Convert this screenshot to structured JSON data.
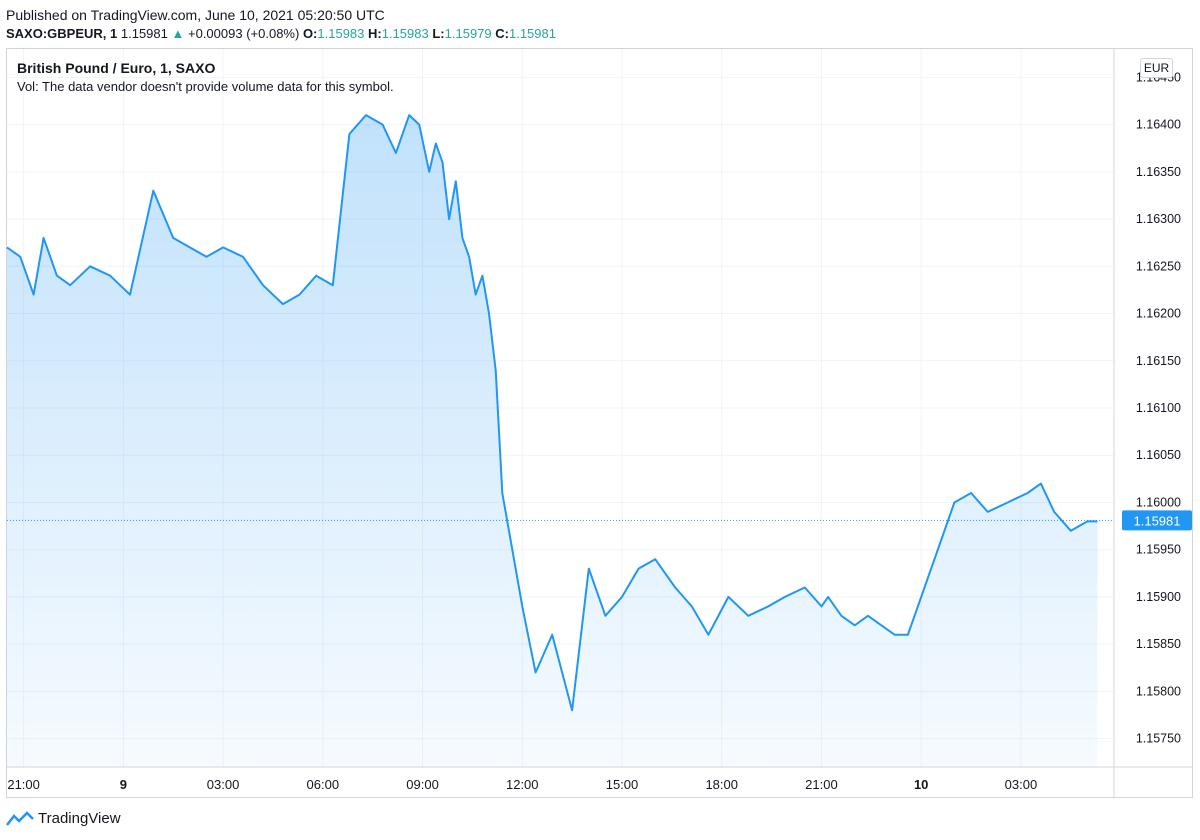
{
  "header": {
    "published": "Published on TradingView.com, June 10, 2021 05:20:50 UTC",
    "symbol": "SAXO:GBPEUR, 1",
    "last": "1.15981",
    "change_arrow": "▲",
    "change": "+0.00093 (+0.08%)",
    "o_label": "O:",
    "o_value": "1.15983",
    "h_label": "H:",
    "h_value": "1.15983",
    "l_label": "L:",
    "l_value": "1.15979",
    "c_label": "C:",
    "c_value": "1.15981"
  },
  "chart_title": "British Pound / Euro, 1, SAXO",
  "vol_note": "Vol: The data vendor doesn't provide volume data for this symbol.",
  "currency": "EUR",
  "footer": {
    "brand": "TradingView"
  },
  "colors": {
    "line": "#2196f3",
    "price_tag": "#2196f3",
    "axis_text": "#131722",
    "grid": "#f0f3fa"
  },
  "chart_data": {
    "type": "area",
    "x_unit": "UTC time (hours from 21:00, June 8)",
    "ylim": [
      1.1572,
      1.1648
    ],
    "yticks": [
      1.1575,
      1.158,
      1.1585,
      1.159,
      1.1595,
      1.16,
      1.1605,
      1.161,
      1.1615,
      1.162,
      1.1625,
      1.163,
      1.1635,
      1.164,
      1.1645
    ],
    "ytick_labels": [
      "1.15750",
      "1.15800",
      "1.15850",
      "1.15900",
      "1.15950",
      "1.16000",
      "1.16050",
      "1.16100",
      "1.16150",
      "1.16200",
      "1.16250",
      "1.16300",
      "1.16350",
      "1.16400",
      "1.16450"
    ],
    "xlim": [
      -0.5,
      32.8
    ],
    "xticks": [
      0,
      3,
      6,
      9,
      12,
      15,
      18,
      21,
      24,
      27,
      30
    ],
    "xtick_labels": [
      "21:00",
      "9",
      "03:00",
      "06:00",
      "09:00",
      "12:00",
      "15:00",
      "18:00",
      "21:00",
      "10",
      "03:00"
    ],
    "xtick_bold": [
      false,
      true,
      false,
      false,
      false,
      false,
      false,
      false,
      false,
      true,
      false
    ],
    "last_price": 1.15981,
    "last_price_label": "1.15981",
    "x": [
      -0.5,
      -0.1,
      0.3,
      0.6,
      1.0,
      1.4,
      2.0,
      2.6,
      3.2,
      3.9,
      4.5,
      5.0,
      5.5,
      6.0,
      6.6,
      7.2,
      7.8,
      8.3,
      8.8,
      9.3,
      9.8,
      10.3,
      10.8,
      11.2,
      11.6,
      11.9,
      12.2,
      12.4,
      12.6,
      12.8,
      13.0,
      13.2,
      13.4,
      13.6,
      13.8,
      14.0,
      14.2,
      14.4,
      14.7,
      15.0,
      15.4,
      15.9,
      16.5,
      17.0,
      17.5,
      18.0,
      18.5,
      19.0,
      19.6,
      20.1,
      20.6,
      21.2,
      21.8,
      22.4,
      22.9,
      23.5,
      24.0,
      24.2,
      24.6,
      25.0,
      25.4,
      25.8,
      26.2,
      26.6,
      27.0,
      27.5,
      28.0,
      28.5,
      29.0,
      29.6,
      30.2,
      30.6,
      31.0,
      31.5,
      32.0,
      32.3
    ],
    "y": [
      1.1627,
      1.1626,
      1.1622,
      1.1628,
      1.1624,
      1.1623,
      1.1625,
      1.1624,
      1.1622,
      1.1633,
      1.1628,
      1.1627,
      1.1626,
      1.1627,
      1.1626,
      1.1623,
      1.1621,
      1.1622,
      1.1624,
      1.1623,
      1.1639,
      1.1641,
      1.164,
      1.1637,
      1.1641,
      1.164,
      1.1635,
      1.1638,
      1.1636,
      1.163,
      1.1634,
      1.1628,
      1.1626,
      1.1622,
      1.1624,
      1.162,
      1.1614,
      1.1601,
      1.1595,
      1.1589,
      1.1582,
      1.1586,
      1.1578,
      1.1593,
      1.1588,
      1.159,
      1.1593,
      1.1594,
      1.1591,
      1.1589,
      1.1586,
      1.159,
      1.1588,
      1.1589,
      1.159,
      1.1591,
      1.1589,
      1.159,
      1.1588,
      1.1587,
      1.1588,
      1.1587,
      1.1586,
      1.1586,
      1.159,
      1.1595,
      1.16,
      1.1601,
      1.1599,
      1.16,
      1.1601,
      1.1602,
      1.1599,
      1.1597,
      1.1598,
      1.1598
    ]
  }
}
